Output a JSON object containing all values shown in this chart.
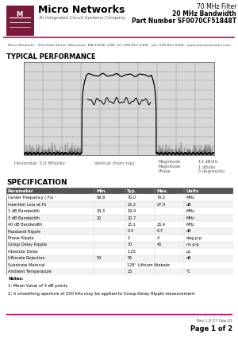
{
  "title_filter": "70 MHz Filter",
  "title_bandwidth": "20 MHz Bandwidth",
  "title_part": "Part Number SF0070CF51848T",
  "company_name": "Micro Networks",
  "company_sub": "An Integrated Circuit Systems Company",
  "address_line": "Micro Networks,  324 Clark Street, Worcester, MA 01606, USA  tel: 508-852-5400,  fax: 508-852-5406,  www.micronetworks.com",
  "section_title": "TYPICAL PERFORMANCE",
  "spec_title": "SPECIFICATION",
  "horiz_label": "Horizontal  5.0 MHz/div",
  "vert_label": "Vertical (from top):",
  "mag_label": "Magnitude\nMagnitude\nPhase",
  "scale_label": "10 dB/div\n1 dB/div\n5 degree/div",
  "table_headers": [
    "Parameter",
    "Min.",
    "Typ.",
    "Max.",
    "Units"
  ],
  "table_rows": [
    [
      "Center Frequency ( Fo) ¹",
      "69.8",
      "70.0",
      "70.2",
      "MHz"
    ],
    [
      "Insertion Loss at Fo",
      "",
      "25.2",
      "27.0",
      "dB"
    ],
    [
      "1 dB Bandwidth",
      "19.3",
      "19.4",
      "",
      "MHz"
    ],
    [
      "3 dB Bandwidth",
      "20",
      "20.7",
      "",
      "MHz"
    ],
    [
      "40 dB Bandwidth",
      "",
      "25.1",
      "25.4",
      "MHz"
    ],
    [
      "Passband Ripple",
      "",
      "0.4",
      "0.7",
      "dB"
    ],
    [
      "Phase Ripple",
      "",
      "2",
      "4",
      "deg p-p"
    ],
    [
      "Group Delay Ripple",
      "",
      "30",
      "45",
      "ns p-p"
    ],
    [
      "Absolute Delay",
      "",
      "1.25",
      "",
      "μs"
    ],
    [
      "Ultimate Rejection",
      "50",
      "55",
      "",
      "dB"
    ],
    [
      "Substrate Material",
      "",
      "128° Lithium Niobate",
      "",
      ""
    ],
    [
      "Ambient Temperature",
      "",
      "25",
      "",
      "°C"
    ]
  ],
  "notes": [
    "Notes:",
    "1: Mean Value of 3 dB points",
    "2: A smoothing aperture of 250 kHz may be applied to Group Delay Ripple measurement"
  ],
  "page_note": "Rev 1.0 27-Sep-01",
  "page_label": "Page 1 of 2",
  "logo_color": "#7a1a3a",
  "line_color": "#cc0066",
  "bg_color": "#ffffff",
  "grid_color": "#999999",
  "plot_bg": "#d8d8d8"
}
